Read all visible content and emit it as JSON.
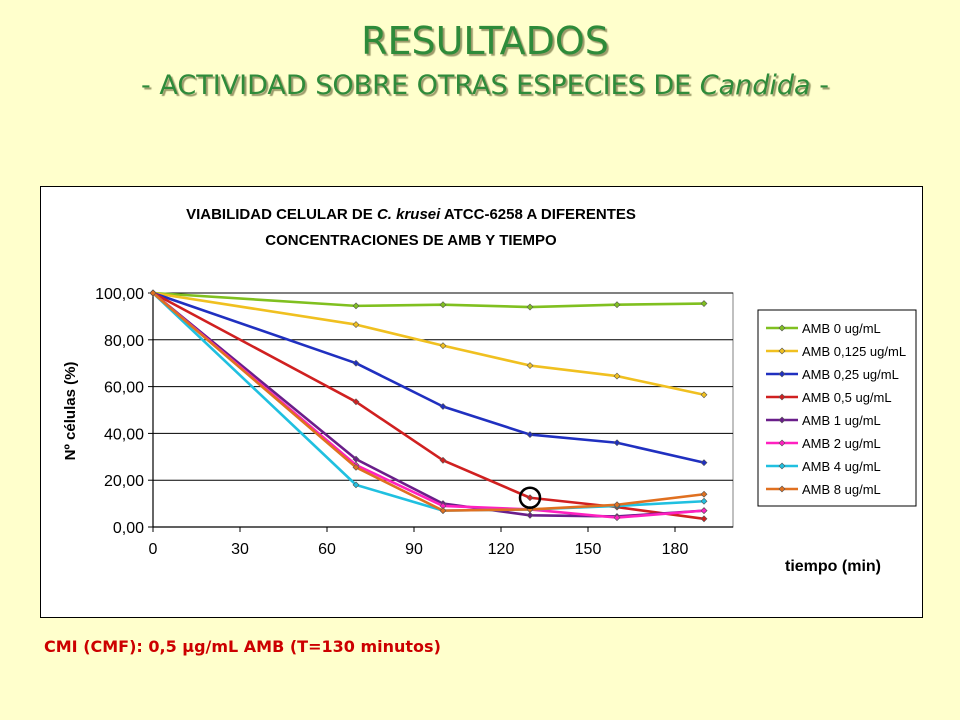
{
  "slide": {
    "title": "RESULTADOS",
    "subtitle_prefix": "- ACTIVIDAD SOBRE OTRAS ESPECIES DE ",
    "subtitle_italic": "Candida",
    "subtitle_suffix": " -",
    "footnote": "CMI (CMF): 0,5 µg/mL AMB (T=130 minutos)"
  },
  "chart_data": {
    "type": "line",
    "title_line1_prefix": "VIABILIDAD CELULAR DE ",
    "title_line1_italic": "C. krusei",
    "title_line1_suffix": " ATCC-6258 A DIFERENTES",
    "title_line2": "CONCENTRACIONES DE AMB Y TIEMPO",
    "xlabel": "tiempo (min)",
    "ylabel": "Nº células (%)",
    "xlim": [
      0,
      200
    ],
    "ylim": [
      0,
      100
    ],
    "xticks": [
      0,
      30,
      60,
      90,
      120,
      150,
      180
    ],
    "xtick_labels": [
      "0",
      "30",
      "60",
      "90",
      "120",
      "150",
      "180"
    ],
    "yticks": [
      0,
      20,
      40,
      60,
      80,
      100
    ],
    "ytick_labels": [
      "0,00",
      "20,00",
      "40,00",
      "60,00",
      "80,00",
      "100,00"
    ],
    "grid": "horizontal",
    "legend_position": "right",
    "x": [
      0,
      70,
      100,
      130,
      160,
      190
    ],
    "series": [
      {
        "name": "AMB 0 ug/mL",
        "color": "#80c020",
        "values": [
          100,
          94.5,
          95,
          94,
          95,
          95.5
        ]
      },
      {
        "name": "AMB 0,125 ug/mL",
        "color": "#f0c020",
        "values": [
          100,
          86.5,
          77.5,
          69,
          64.5,
          56.5
        ]
      },
      {
        "name": "AMB 0,25 ug/mL",
        "color": "#2030c0",
        "values": [
          100,
          70,
          51.5,
          39.5,
          36,
          27.5
        ]
      },
      {
        "name": "AMB 0,5 ug/mL",
        "color": "#d02020",
        "values": [
          100,
          53.5,
          28.5,
          12.5,
          8.5,
          3.5
        ]
      },
      {
        "name": "AMB 1 ug/mL",
        "color": "#6a1e8a",
        "values": [
          100,
          29,
          10,
          5,
          4.5,
          7
        ]
      },
      {
        "name": "AMB 2 ug/mL",
        "color": "#ff20c0",
        "values": [
          100,
          26.5,
          9,
          7.5,
          4,
          7
        ]
      },
      {
        "name": "AMB 4 ug/mL",
        "color": "#20c0e0",
        "values": [
          100,
          18,
          7,
          7.5,
          9,
          11
        ]
      },
      {
        "name": "AMB 8 ug/mL",
        "color": "#e07020",
        "values": [
          100,
          25.5,
          7,
          7.5,
          9.5,
          14
        ]
      }
    ],
    "highlight": {
      "x": 130,
      "y": 12.5
    }
  }
}
